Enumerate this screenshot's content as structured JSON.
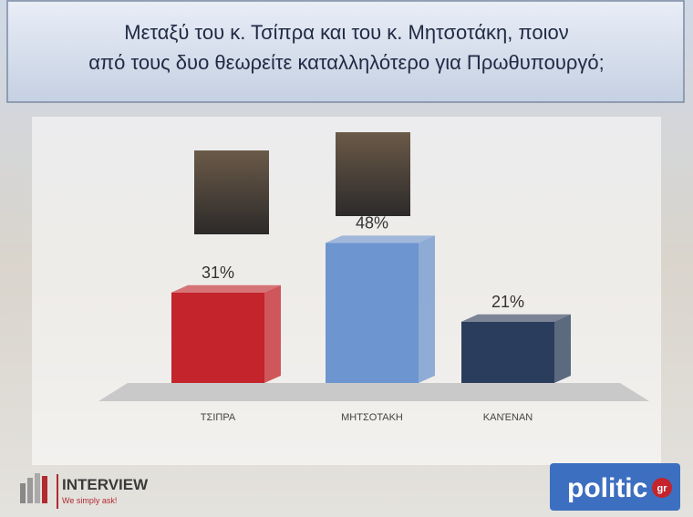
{
  "chart_data": {
    "type": "bar3d",
    "title": "Μεταξύ του κ. Τσίπρα και του κ. Μητσοτάκη, ποιον από τους δυο θεωρείτε καταλληλότερο για Πρωθυπουργό;",
    "categories": [
      "ΤΣΙΠΡΑ",
      "ΜΗΤΣΟΤΑΚΗ",
      "ΚΑΝΈΝΑΝ"
    ],
    "values": [
      31,
      48,
      21
    ],
    "value_labels": [
      "31%",
      "48%",
      "21%"
    ],
    "colors": [
      "#c4242b",
      "#6d95cf",
      "#2b3d5c"
    ]
  },
  "logos": {
    "interview": "INTERVIEW",
    "interview_tagline": "We simply ask!",
    "politic": "politic",
    "politic_suffix": "gr"
  }
}
